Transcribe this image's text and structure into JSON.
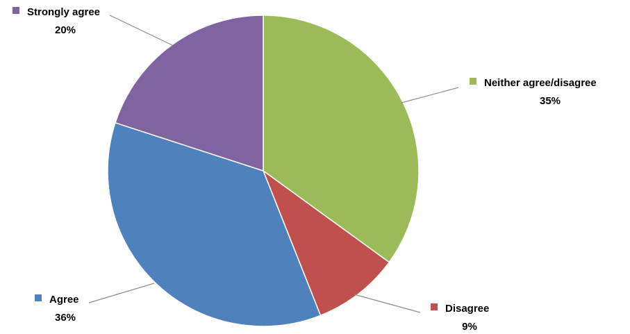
{
  "chart_data": {
    "type": "pie",
    "title": "",
    "slices": [
      {
        "label": "Neither agree/disagree",
        "value": 35,
        "percent_label": "35%",
        "color": "#9BBB59"
      },
      {
        "label": "Disagree",
        "value": 9,
        "percent_label": "9%",
        "color": "#C0504D"
      },
      {
        "label": "Agree",
        "value": 36,
        "percent_label": "36%",
        "color": "#4F81BD"
      },
      {
        "label": "Strongly agree",
        "value": 20,
        "percent_label": "20%",
        "color": "#8064A2"
      }
    ],
    "start_angle": "12 o'clock",
    "direction": "clockwise",
    "labels": "outside with leader lines and color markers"
  }
}
